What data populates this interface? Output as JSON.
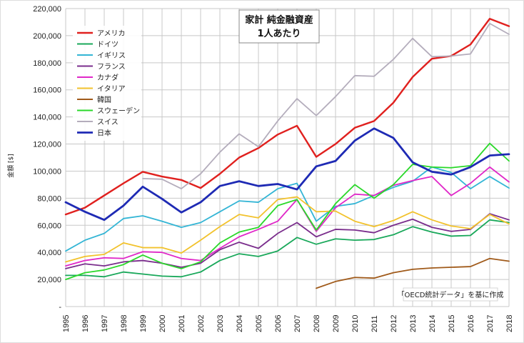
{
  "chart_data": {
    "type": "line",
    "title": "家計 純金融資産",
    "subtitle": "1人あたり",
    "xlabel": "",
    "ylabel": "金額 [$]",
    "ylim": [
      0,
      220000
    ],
    "yticks": [
      "-",
      "20,000",
      "40,000",
      "60,000",
      "80,000",
      "100,000",
      "120,000",
      "140,000",
      "160,000",
      "180,000",
      "200,000",
      "220,000"
    ],
    "x": [
      "1995",
      "1996",
      "1997",
      "1998",
      "1999",
      "2000",
      "2001",
      "2002",
      "2003",
      "2004",
      "2005",
      "2006",
      "2007",
      "2008",
      "2009",
      "2010",
      "2011",
      "2012",
      "2013",
      "2014",
      "2015",
      "2016",
      "2017",
      "2018"
    ],
    "grid": true,
    "legend_position": "top-left",
    "note": "「OECD統計データ」を基に作成",
    "series": [
      {
        "name": "アメリカ",
        "color": "#e0201e",
        "width": 2.4,
        "values": [
          68000,
          73000,
          82000,
          91000,
          99500,
          96000,
          93500,
          87500,
          98000,
          110000,
          117000,
          127000,
          133500,
          110500,
          120000,
          132000,
          137000,
          150500,
          169500,
          183000,
          185000,
          193500,
          212500,
          207000
        ]
      },
      {
        "name": "ドイツ",
        "color": "#19a85a",
        "width": 1.8,
        "values": [
          23000,
          23000,
          22000,
          25500,
          24000,
          22500,
          22000,
          25500,
          34000,
          39000,
          37000,
          41000,
          51000,
          46000,
          50000,
          49000,
          49500,
          53000,
          59000,
          55000,
          52000,
          52500,
          64000,
          62000
        ]
      },
      {
        "name": "イギリス",
        "color": "#33b5d5",
        "width": 1.8,
        "values": [
          41000,
          49000,
          54000,
          65000,
          67000,
          63000,
          58500,
          62000,
          70000,
          78000,
          77000,
          87000,
          91000,
          63000,
          74000,
          76000,
          82000,
          88000,
          92500,
          103000,
          99000,
          87000,
          96000,
          87500
        ]
      },
      {
        "name": "フランス",
        "color": "#7a2d8c",
        "width": 1.8,
        "values": [
          28000,
          31500,
          30000,
          33000,
          34000,
          32000,
          29000,
          32000,
          42000,
          47500,
          43000,
          54000,
          62000,
          51500,
          57000,
          56500,
          54500,
          60000,
          64500,
          58500,
          55500,
          57000,
          68500,
          64000
        ]
      },
      {
        "name": "カナダ",
        "color": "#e028c8",
        "width": 1.8,
        "values": [
          30000,
          34000,
          36000,
          35500,
          40500,
          40000,
          35500,
          34000,
          43000,
          51500,
          57000,
          63000,
          79000,
          55500,
          73000,
          83000,
          82000,
          89500,
          93000,
          96000,
          82000,
          91000,
          103000,
          92000
        ]
      },
      {
        "name": "イタリア",
        "color": "#f2c22c",
        "width": 1.8,
        "values": [
          33000,
          37000,
          38500,
          47000,
          43500,
          43500,
          39500,
          49000,
          59000,
          68000,
          65500,
          79000,
          81000,
          70000,
          70500,
          63000,
          59000,
          63500,
          70000,
          64000,
          59500,
          57500,
          68000,
          61000
        ]
      },
      {
        "name": "韓国",
        "color": "#a05a1a",
        "width": 1.8,
        "values": [
          null,
          null,
          null,
          null,
          null,
          null,
          null,
          null,
          null,
          null,
          null,
          null,
          null,
          13500,
          18500,
          21500,
          21000,
          25000,
          27500,
          28500,
          29000,
          29500,
          35500,
          33500
        ]
      },
      {
        "name": "スウェーデン",
        "color": "#2ad82a",
        "width": 1.8,
        "values": [
          20000,
          25000,
          27000,
          31000,
          38000,
          32000,
          28000,
          33000,
          47000,
          55000,
          58500,
          74500,
          79000,
          56500,
          76000,
          90000,
          80000,
          90000,
          105000,
          103000,
          102500,
          104000,
          120500,
          107500
        ]
      },
      {
        "name": "スイス",
        "color": "#b4adbc",
        "width": 1.8,
        "values": [
          null,
          null,
          null,
          null,
          94500,
          94000,
          87000,
          98000,
          114000,
          127500,
          118000,
          137000,
          153500,
          141000,
          155000,
          170500,
          170000,
          182500,
          198000,
          184500,
          185000,
          186500,
          209000,
          201000
        ]
      },
      {
        "name": "日本",
        "color": "#1e2ab4",
        "width": 2.8,
        "values": [
          77000,
          70000,
          64000,
          74500,
          88500,
          79500,
          69500,
          77000,
          89000,
          92500,
          89000,
          90500,
          86500,
          103500,
          107500,
          122500,
          131500,
          124500,
          106500,
          99500,
          97500,
          103000,
          111500,
          112500
        ]
      }
    ]
  }
}
